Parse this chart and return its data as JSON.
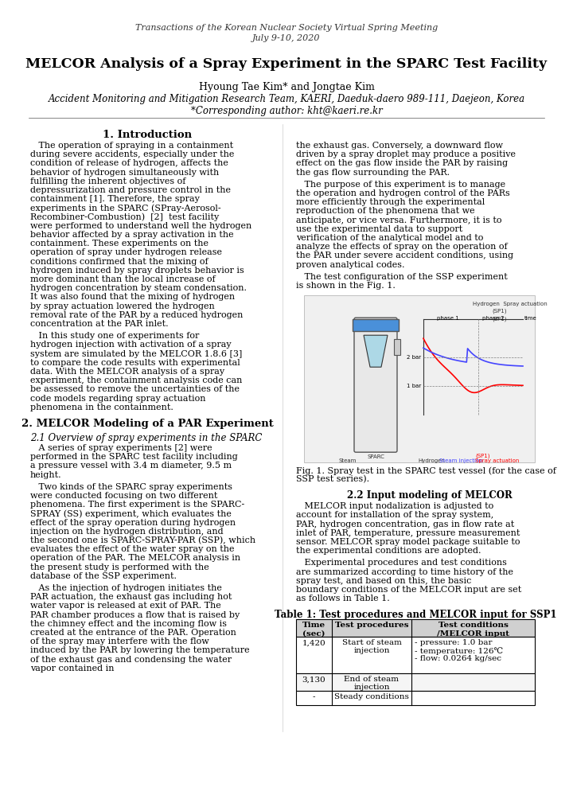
{
  "header_line1": "Transactions of the Korean Nuclear Society Virtual Spring Meeting",
  "header_line2": "July 9-10, 2020",
  "title": "MELCOR Analysis of a Spray Experiment in the SPARC Test Facility",
  "authors": "Hyoung Tae Kim* and Jongtae Kim",
  "affiliation": "Accident Monitoring and Mitigation Research Team, KAERI, Daeduk-daero 989-111, Daejeon, Korea",
  "corresponding": "*Corresponding author: kht@kaeri.re.kr",
  "sec1_heading": "1. Introduction",
  "sec1_left_para1": "   The operation of spraying in a containment during severe accidents, especially under the condition of release of hydrogen, affects the behavior of hydrogen simultaneously with fulfilling the inherent objectives of depressurization and pressure control in the containment [1]. Therefore, the spray experiments in the SPARC (SPray-Aerosol-Recombiner-Combustion)  [2]  test facility were performed to understand well the hydrogen behavior affected by a spray activation in the containment. These experiments on the operation of spray under hydrogen release conditions confirmed that the mixing of hydrogen induced by spray droplets behavior is more dominant than the local increase of hydrogen concentration by steam condensation. It was also found that the mixing of hydrogen by spray actuation lowered the hydrogen removal rate of the PAR by a reduced hydrogen concentration at the PAR inlet.",
  "sec1_left_para2": "   In this study one of experiments for hydrogen injection with activation of a spray system are simulated by the MELCOR 1.8.6 [3] to compare the code results with experimental data. With the MELCOR analysis of a spray experiment, the containment analysis code can be assessed to remove the uncertainties of the code models regarding spray actuation phenomena in the containment.",
  "sec1_right_para1": "the exhaust gas. Conversely, a downward flow driven by a spray droplet may produce a positive effect on the gas flow inside the PAR by raising the gas flow surrounding the PAR.",
  "sec1_right_para2": "   The purpose of this experiment is to manage the operation and hydrogen control of the PARs more efficiently through the experimental reproduction of the phenomena that we anticipate, or vice versa. Furthermore, it is to use the experimental data to support verification of the analytical model and to analyze the effects of spray on the operation of the PAR under severe accident conditions, using proven analytical codes.",
  "sec1_right_para3": "   The test configuration of the SSP experiment is shown in the Fig. 1.",
  "fig1_caption": "Fig. 1. Spray test in the SPARC test vessel (for the case of\nSSP test series).",
  "sec2_heading": "2. MELCOR Modeling of a PAR Experiment",
  "sec2_sub1": "2.1 Overview of spray experiments in the SPARC",
  "sec2_left_para1": "   A series of spray experiments [2] were performed in the SPARC test facility including a pressure vessel with 3.4 m diameter, 9.5 m height.",
  "sec2_left_para2": "   Two kinds of the SPARC spray experiments were conducted focusing on two different phenomena. The first experiment is the SPARC-SPRAY (SS) experiment, which evaluates the effect of the spray operation during hydrogen injection on the hydrogen distribution, and the second one is SPARC-SPRAY-PAR (SSP), which evaluates the effect of the water spray on the operation of the PAR. The MELCOR analysis in the present study is performed with the database of the SSP experiment.",
  "sec2_left_para3": "   As the injection of hydrogen initiates the PAR actuation, the exhaust gas including hot water vapor is released at exit of PAR. The PAR chamber produces a flow that is raised by the chimney effect and the incoming flow is created at the entrance of the PAR. Operation of the spray may interfere with the flow induced by the PAR by lowering the temperature of the exhaust gas and condensing the water vapor contained in",
  "sec2_sub2": "2.2 Input modeling of MELCOR",
  "sec2_right_para1": "   MELCOR input nodalization is adjusted to account for installation of the spray system, PAR, hydrogen concentration, gas in flow rate at inlet of PAR, temperature, pressure measurement sensor. MELCOR spray model package suitable to the experimental conditions are adopted.",
  "sec2_right_para2": "   Experimental procedures and test conditions are summarized according to time history of the spray test, and based on this, the basic boundary conditions of the MELCOR input are set as follows in Table 1.",
  "table1_title": "Table 1: Test procedures and MELCOR input for SSP1",
  "table1_col1": "Time\n(sec)",
  "table1_col2": "Test procedures",
  "table1_col3": "Test conditions\n/MELCOR input",
  "table1_row1_time": "1,420",
  "table1_row1_proc": "Start of steam\ninjection",
  "table1_row1_cond": "- pressure: 1.0 bar\n- temperature: 126℃\n- flow: 0.0264 kg/sec",
  "table1_row2_time": "3,130",
  "table1_row2_proc": "End of steam\ninjection",
  "table1_row2_cond": "",
  "table1_row3_time": "-",
  "table1_row3_proc": "Steady conditions",
  "table1_row3_cond": "",
  "bg_color": "#ffffff",
  "text_color": "#000000",
  "header_color": "#333333"
}
